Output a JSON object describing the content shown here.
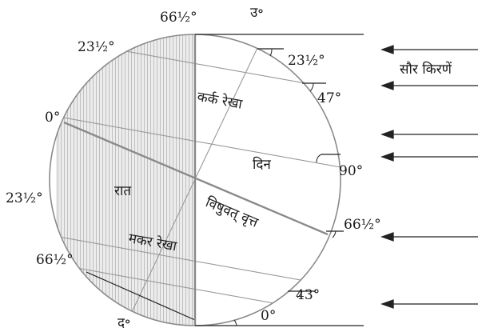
{
  "labels": {
    "top_angle": "66½°",
    "north": "उ॰",
    "south": "द॰",
    "left_23_top": "23½°",
    "left_0": "0°",
    "left_23_bottom": "23½°",
    "left_66_bottom": "66½°",
    "right_23": "23½°",
    "right_47": "47°",
    "right_90": "90°",
    "right_66": "66½°",
    "bottom_43": "43°",
    "bottom_0": "0°",
    "sun_rays": "सौर किरणें",
    "tropic_cancer": "कर्क रेखा",
    "equator": "विषुवत् वृत्त",
    "tropic_capricorn": "मकर रेखा",
    "day": "दिन",
    "night": "रात"
  }
}
